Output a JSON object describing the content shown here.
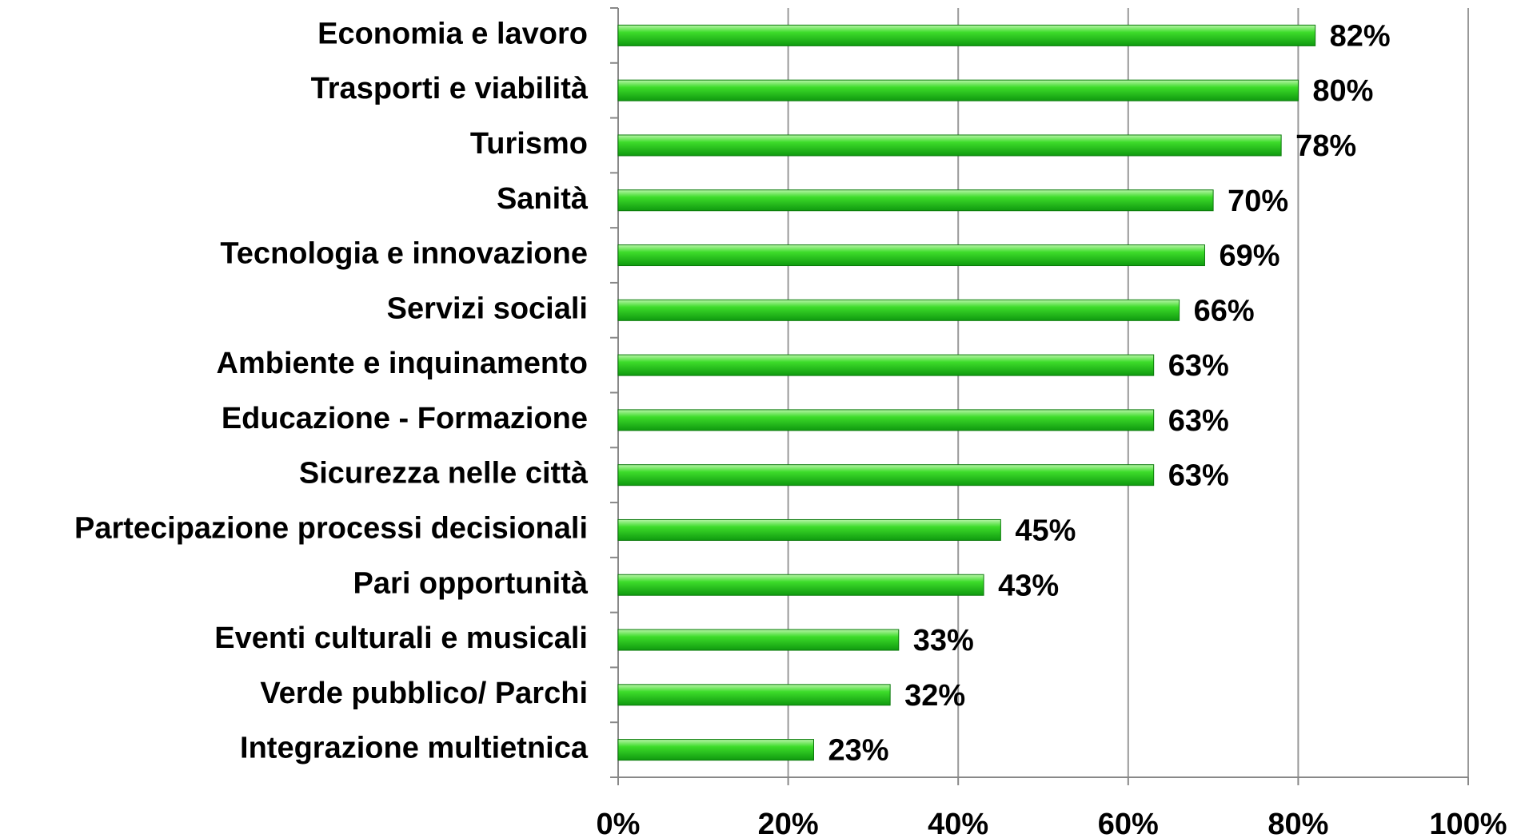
{
  "chart_data": {
    "type": "barh",
    "categories": [
      "Economia e lavoro",
      "Trasporti e viabilità",
      "Turismo",
      "Sanità",
      "Tecnologia e innovazione",
      "Servizi sociali",
      "Ambiente e inquinamento",
      "Educazione - Formazione",
      "Sicurezza nelle città",
      "Partecipazione processi decisionali",
      "Pari opportunità",
      "Eventi culturali e musicali",
      "Verde pubblico/ Parchi",
      "Integrazione multietnica"
    ],
    "values": [
      82,
      80,
      78,
      70,
      69,
      66,
      63,
      63,
      63,
      45,
      43,
      33,
      32,
      23
    ],
    "value_labels": [
      "82%",
      "80%",
      "78%",
      "70%",
      "69%",
      "66%",
      "63%",
      "63%",
      "63%",
      "45%",
      "43%",
      "33%",
      "32%",
      "23%"
    ],
    "color": "#22cc22",
    "xlim": [
      0,
      100
    ],
    "xticks": [
      {
        "value": 0,
        "label": "0%"
      },
      {
        "value": 20,
        "label": "20%"
      },
      {
        "value": 40,
        "label": "40%"
      },
      {
        "value": 60,
        "label": "60%"
      },
      {
        "value": 80,
        "label": "80%"
      },
      {
        "value": 100,
        "label": "100%"
      }
    ],
    "grid": true
  }
}
